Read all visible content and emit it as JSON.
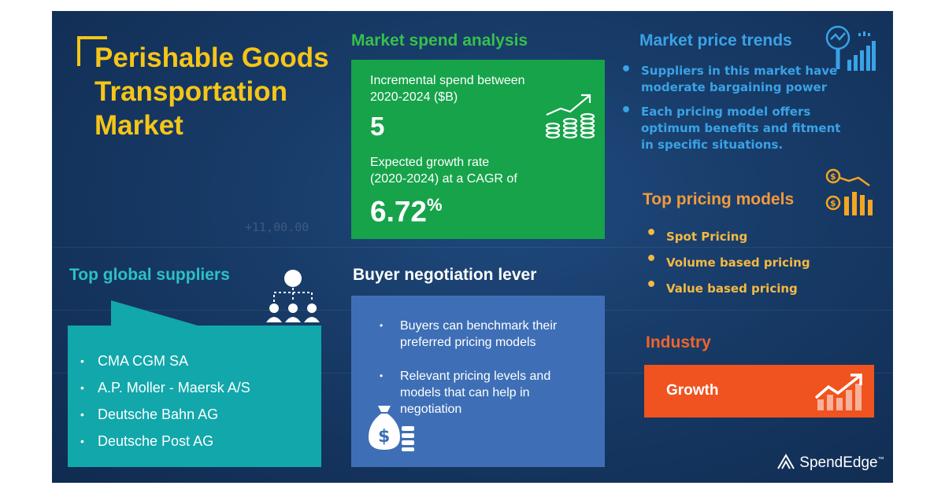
{
  "title": {
    "line1": "Perishable Goods",
    "line2": "Transportation",
    "line3": "Market"
  },
  "spend": {
    "heading": "Market spend analysis",
    "incremental_label_1": "Incremental spend between",
    "incremental_label_2": "2020-2024 ($B)",
    "incremental_value": "5",
    "growth_label_1": "Expected growth rate",
    "growth_label_2": "(2020-2024) at a CAGR of",
    "growth_value": "6.72",
    "growth_unit": "%"
  },
  "trends": {
    "heading": "Market price trends",
    "items": [
      [
        "Suppliers in this market have",
        "moderate bargaining power"
      ],
      [
        "Each pricing model offers",
        "optimum benefits and fitment",
        "in specific situations."
      ]
    ]
  },
  "pricing": {
    "heading": "Top pricing models",
    "items": [
      "Spot Pricing",
      "Volume based pricing",
      "Value based pricing"
    ]
  },
  "suppliers": {
    "heading": "Top global suppliers",
    "items": [
      "CMA CGM SA",
      "A.P. Moller - Maersk A/S",
      "Deutsche Bahn AG",
      "Deutsche Post AG"
    ]
  },
  "negotiation": {
    "heading": "Buyer negotiation lever",
    "items": [
      [
        "Buyers can benchmark their",
        "preferred pricing models"
      ],
      [
        "Relevant pricing  levels and",
        "models that can help in",
        "negotiation"
      ]
    ]
  },
  "industry": {
    "heading": "Industry",
    "value": "Growth"
  },
  "background_text": "+11,00.00",
  "logo": {
    "text": "SpendEdge",
    "mark": "™"
  },
  "icons": {
    "spend": "coin-stacks-growth-icon",
    "trends": "magnifier-bar-chart-icon",
    "pricing": "dollar-bars-trend-icon",
    "suppliers": "globe-network-people-icon",
    "negotiation": "money-bag-icon",
    "industry": "growth-chart-icon",
    "logo": "spendedge-logo-icon"
  },
  "colors": {
    "background": "#173a66",
    "title": "#f5c518",
    "spend_box": "#16a34a",
    "trends": "#3aa2e6",
    "pricing": "#f5b942",
    "suppliers_box": "#11a7ab",
    "negotiation_box": "#3e6fb6",
    "industry_box": "#f0531f"
  }
}
